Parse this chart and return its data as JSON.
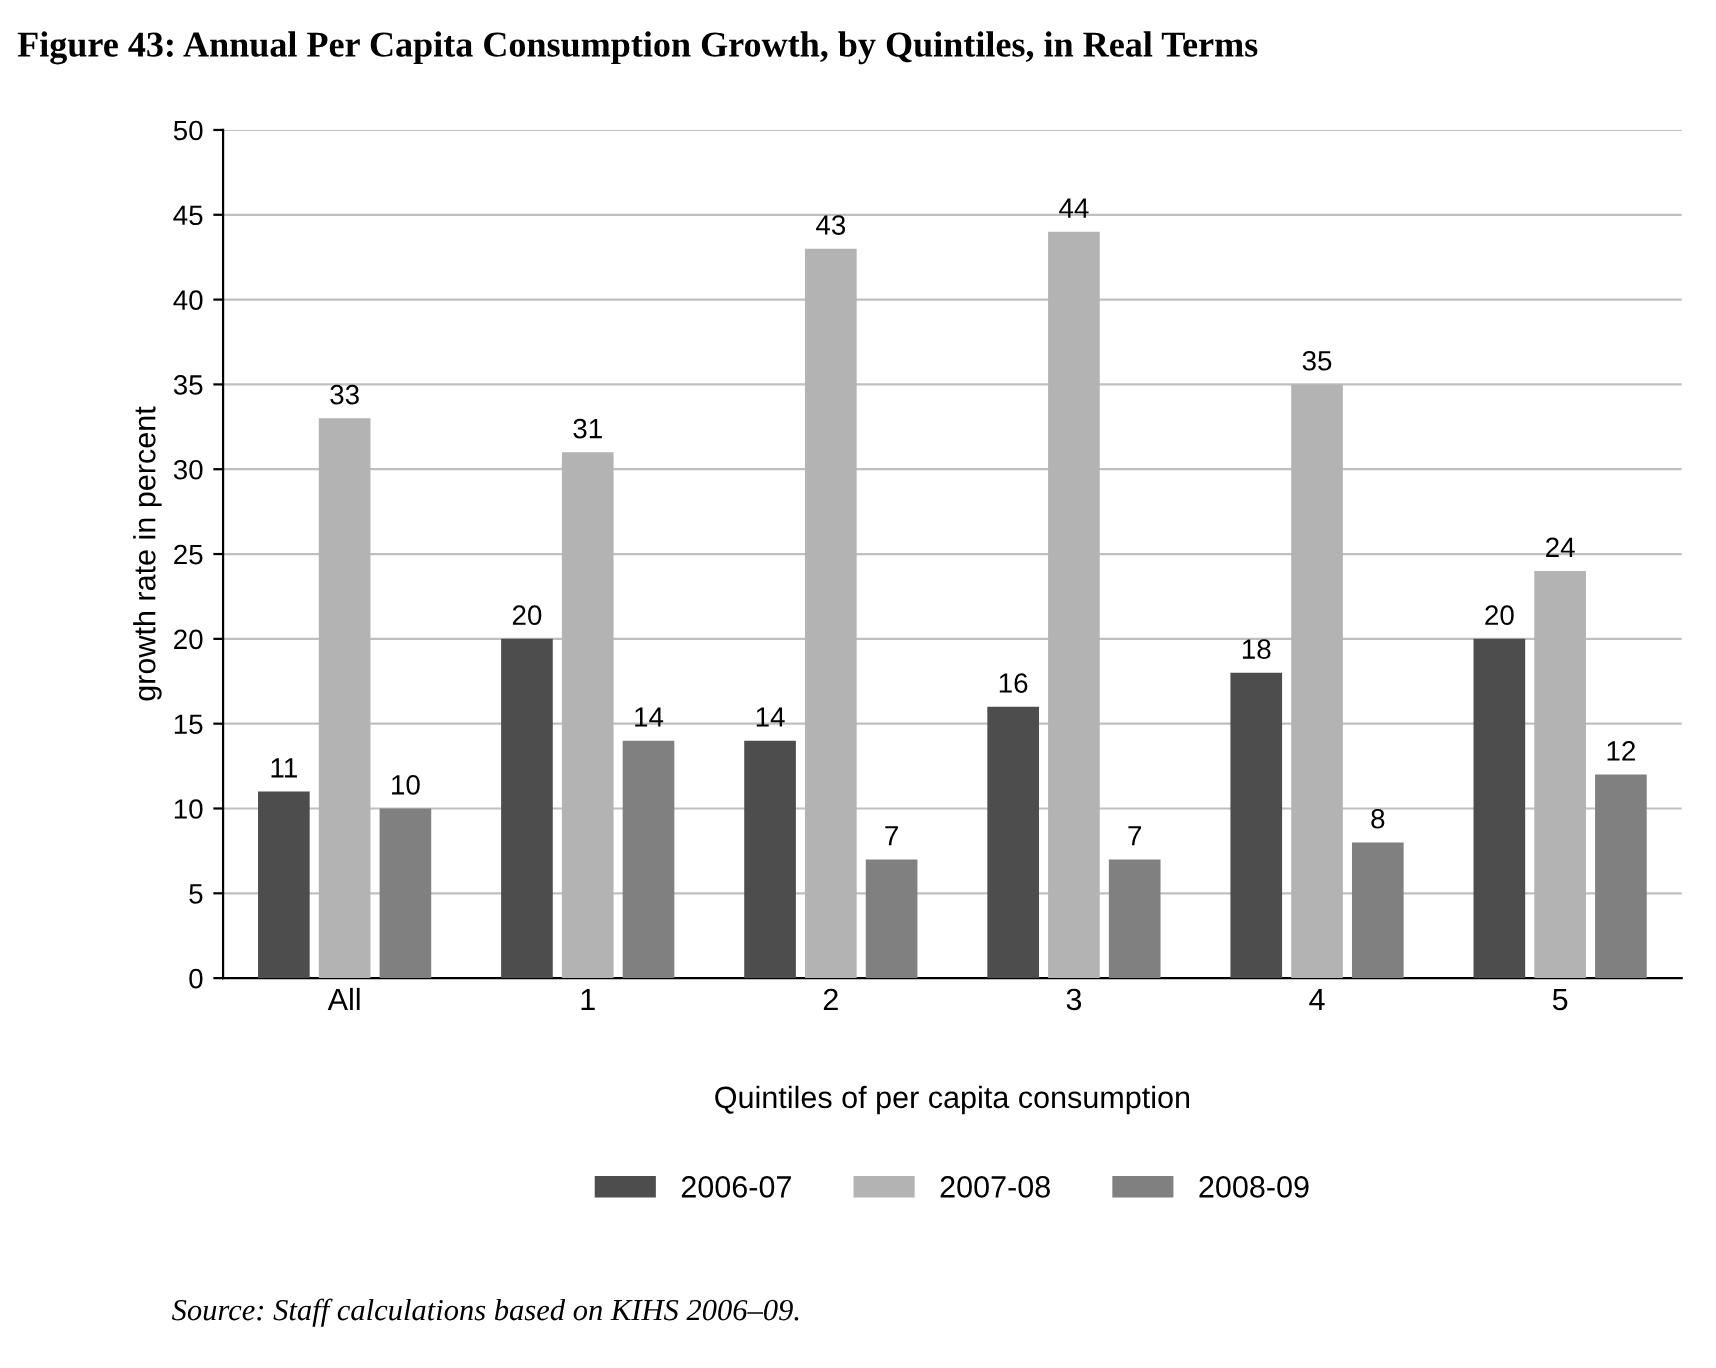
{
  "chart_data": {
    "type": "bar",
    "title": "Figure 43: Annual Per Capita Consumption Growth, by Quintiles, in Real Terms",
    "ylabel": "growth rate in percent",
    "xlabel": "Quintiles of per capita consumption",
    "categories": [
      "All",
      "1",
      "2",
      "3",
      "4",
      "5"
    ],
    "series": [
      {
        "name": "2006-07",
        "color": "#4d4d4d",
        "values": [
          11,
          20,
          14,
          16,
          18,
          20
        ]
      },
      {
        "name": "2007-08",
        "color": "#b3b3b3",
        "values": [
          33,
          31,
          43,
          44,
          35,
          24
        ]
      },
      {
        "name": "2008-09",
        "color": "#808080",
        "values": [
          10,
          14,
          7,
          7,
          8,
          12
        ]
      }
    ],
    "ylim": [
      0,
      50
    ],
    "yticks": [
      0,
      5,
      10,
      15,
      20,
      25,
      30,
      35,
      40,
      45,
      50
    ],
    "grid": "y",
    "legend": "bottom",
    "data_labels": true,
    "annotations": [
      "Source: Staff calculations based on KIHS 2006–09."
    ]
  }
}
